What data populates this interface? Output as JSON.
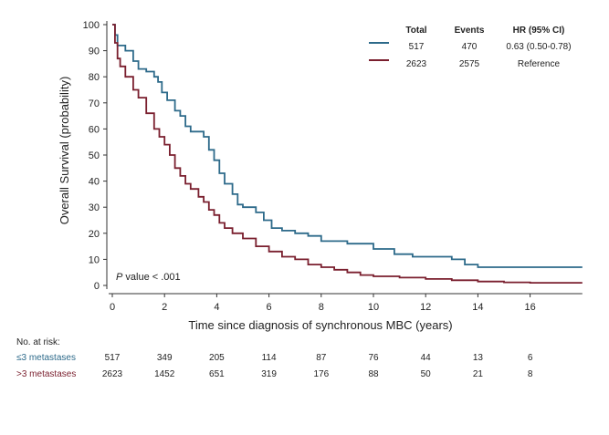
{
  "chart_data": {
    "type": "line",
    "title": "",
    "xlabel": "Time since diagnosis of synchronous MBC (years)",
    "ylabel": "Overall Survival (probability)",
    "xlim": [
      0,
      18
    ],
    "ylim": [
      0,
      100
    ],
    "x_ticks": [
      0,
      2,
      4,
      6,
      8,
      10,
      12,
      14,
      16
    ],
    "y_ticks": [
      0,
      10,
      20,
      30,
      40,
      50,
      60,
      70,
      80,
      90,
      100
    ],
    "series": [
      {
        "name": "≤3 metastases",
        "color": "#2d6a8a",
        "points": [
          [
            0,
            100
          ],
          [
            0.1,
            96
          ],
          [
            0.2,
            92
          ],
          [
            0.5,
            90
          ],
          [
            0.8,
            86
          ],
          [
            1,
            83
          ],
          [
            1.3,
            82
          ],
          [
            1.6,
            80
          ],
          [
            1.75,
            78
          ],
          [
            1.9,
            74
          ],
          [
            2.1,
            71
          ],
          [
            2.4,
            67
          ],
          [
            2.6,
            65
          ],
          [
            2.8,
            61
          ],
          [
            3,
            59
          ],
          [
            3.5,
            57
          ],
          [
            3.7,
            52
          ],
          [
            3.9,
            48
          ],
          [
            4.1,
            43
          ],
          [
            4.3,
            39
          ],
          [
            4.6,
            35
          ],
          [
            4.8,
            31
          ],
          [
            5,
            30
          ],
          [
            5.5,
            28
          ],
          [
            5.8,
            25
          ],
          [
            6.1,
            22
          ],
          [
            6.5,
            21
          ],
          [
            7,
            20
          ],
          [
            7.5,
            19
          ],
          [
            8,
            17
          ],
          [
            9,
            16
          ],
          [
            10,
            14
          ],
          [
            10.8,
            12
          ],
          [
            11.5,
            11
          ],
          [
            13,
            10
          ],
          [
            13.5,
            8
          ],
          [
            14,
            7
          ],
          [
            18,
            7
          ]
        ]
      },
      {
        "name": ">3 metastases",
        "color": "#7a1f2e",
        "points": [
          [
            0,
            100
          ],
          [
            0.1,
            93
          ],
          [
            0.2,
            87
          ],
          [
            0.3,
            84
          ],
          [
            0.5,
            80
          ],
          [
            0.8,
            75
          ],
          [
            1,
            72
          ],
          [
            1.3,
            66
          ],
          [
            1.6,
            60
          ],
          [
            1.8,
            57
          ],
          [
            2,
            54
          ],
          [
            2.2,
            50
          ],
          [
            2.4,
            45
          ],
          [
            2.6,
            42
          ],
          [
            2.8,
            39
          ],
          [
            3,
            37
          ],
          [
            3.3,
            34
          ],
          [
            3.5,
            32
          ],
          [
            3.7,
            29
          ],
          [
            3.9,
            27
          ],
          [
            4.1,
            24
          ],
          [
            4.3,
            22
          ],
          [
            4.6,
            20
          ],
          [
            5,
            18
          ],
          [
            5.5,
            15
          ],
          [
            6,
            13
          ],
          [
            6.5,
            11
          ],
          [
            7,
            10
          ],
          [
            7.5,
            8
          ],
          [
            8,
            7
          ],
          [
            8.5,
            6
          ],
          [
            9,
            5
          ],
          [
            9.5,
            4
          ],
          [
            10,
            3.5
          ],
          [
            11,
            3
          ],
          [
            12,
            2.5
          ],
          [
            13,
            2
          ],
          [
            14,
            1.5
          ],
          [
            15,
            1.2
          ],
          [
            16,
            1
          ],
          [
            18,
            1
          ]
        ]
      }
    ],
    "legend": {
      "position": "top-right",
      "headers": [
        "Total",
        "Events",
        "HR (95% CI)"
      ],
      "rows": [
        {
          "total": "517",
          "events": "470",
          "hr": "0.63 (0.50-0.78)"
        },
        {
          "total": "2623",
          "events": "2575",
          "hr": "Reference"
        }
      ]
    },
    "annotation": {
      "p_label": "P",
      "p_rest": " value < .001"
    },
    "at_risk": {
      "title": "No. at risk:",
      "rows": [
        {
          "label": "≤3 metastases",
          "values": [
            "517",
            "349",
            "205",
            "114",
            "87",
            "76",
            "44",
            "13",
            "6"
          ]
        },
        {
          "label": ">3 metastases",
          "values": [
            "2623",
            "1452",
            "651",
            "319",
            "176",
            "88",
            "50",
            "21",
            "8"
          ]
        }
      ]
    }
  }
}
